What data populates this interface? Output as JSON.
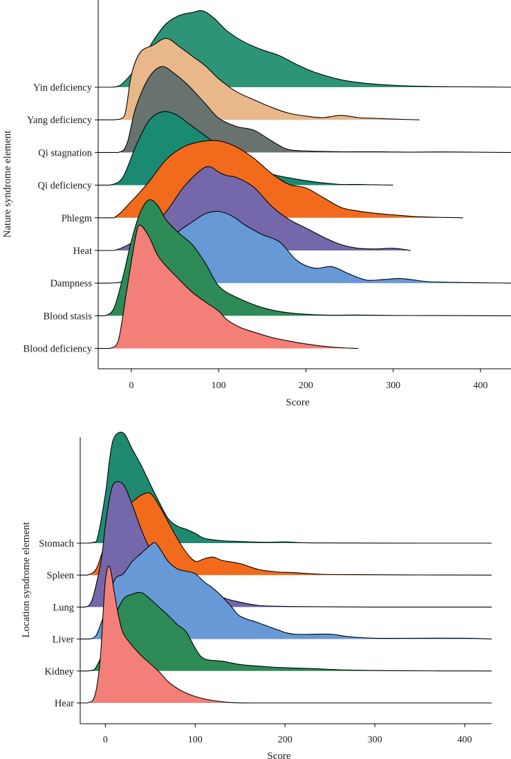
{
  "chart_data": [
    {
      "type": "ridgeline",
      "xlabel": "Score",
      "ylabel": "Nature syndrome element",
      "xlim": [
        -38,
        435
      ],
      "x_ticks": [
        0,
        100,
        200,
        300,
        400
      ],
      "categories_top_to_bottom": [
        "Yin deficiency",
        "Yang deficiency",
        "Qi stagnation",
        "Qi deficiency",
        "Phlegm",
        "Heat",
        "Dampness",
        "Blood stasis",
        "Blood deficiency"
      ],
      "series": [
        {
          "name": "Yin deficiency",
          "color": "#2E9478",
          "x": [
            -38,
            -22,
            -12,
            10,
            25,
            40,
            55,
            70,
            82,
            95,
            110,
            130,
            150,
            170,
            190,
            210,
            240,
            270,
            300,
            340,
            380,
            435
          ],
          "density": [
            0.0,
            0.0,
            0.03,
            0.32,
            0.62,
            0.85,
            0.96,
            1.0,
            1.02,
            0.92,
            0.75,
            0.6,
            0.5,
            0.42,
            0.3,
            0.2,
            0.1,
            0.05,
            0.025,
            0.01,
            0.005,
            0.0
          ]
        },
        {
          "name": "Yang deficiency",
          "color": "#E8B88A",
          "x": [
            -38,
            -20,
            -8,
            0,
            10,
            25,
            40,
            55,
            70,
            85,
            100,
            120,
            140,
            160,
            180,
            200,
            220,
            240,
            260,
            280,
            300,
            330
          ],
          "density": [
            0.0,
            0.0,
            0.05,
            0.6,
            0.9,
            1.0,
            1.09,
            0.98,
            0.85,
            0.72,
            0.55,
            0.38,
            0.27,
            0.17,
            0.09,
            0.05,
            0.03,
            0.06,
            0.03,
            0.02,
            0.01,
            0.0
          ]
        },
        {
          "name": "Qi stagnation",
          "color": "#687370",
          "x": [
            -38,
            -15,
            -5,
            5,
            20,
            35,
            50,
            65,
            85,
            100,
            120,
            140,
            160,
            175,
            185,
            200,
            240,
            280,
            320,
            360,
            400,
            435
          ],
          "density": [
            0.0,
            0.0,
            0.12,
            0.6,
            1.0,
            1.15,
            1.05,
            0.9,
            0.65,
            0.46,
            0.35,
            0.3,
            0.16,
            0.06,
            0.03,
            0.02,
            0.01,
            0.01,
            0.005,
            0.008,
            0.003,
            0.0
          ]
        },
        {
          "name": "Qi deficiency",
          "color": "#1B8A73",
          "x": [
            -38,
            -25,
            -10,
            5,
            20,
            35,
            50,
            65,
            80,
            100,
            120,
            140,
            160,
            180,
            200,
            220,
            240,
            260,
            280,
            300
          ],
          "density": [
            0.0,
            0.0,
            0.1,
            0.52,
            0.86,
            0.98,
            0.95,
            0.83,
            0.7,
            0.53,
            0.38,
            0.25,
            0.15,
            0.1,
            0.06,
            0.03,
            0.01,
            0.01,
            0.005,
            0.0
          ]
        },
        {
          "name": "Phlegm",
          "color": "#F26B1D",
          "x": [
            -38,
            -20,
            0,
            20,
            40,
            60,
            80,
            100,
            120,
            140,
            160,
            180,
            200,
            220,
            240,
            260,
            280,
            300,
            320,
            340,
            360,
            380
          ],
          "density": [
            0.0,
            0.0,
            0.22,
            0.48,
            0.78,
            0.95,
            1.02,
            1.03,
            0.95,
            0.8,
            0.6,
            0.45,
            0.4,
            0.27,
            0.14,
            0.09,
            0.06,
            0.04,
            0.02,
            0.01,
            0.005,
            0.0
          ]
        },
        {
          "name": "Heat",
          "color": "#7568AA",
          "x": [
            -38,
            -20,
            0,
            20,
            40,
            60,
            80,
            90,
            100,
            110,
            120,
            140,
            160,
            180,
            200,
            220,
            240,
            260,
            280,
            300,
            320
          ],
          "density": [
            0.0,
            0.0,
            0.1,
            0.28,
            0.52,
            0.85,
            1.08,
            1.12,
            1.05,
            1.0,
            0.98,
            0.85,
            0.6,
            0.42,
            0.3,
            0.18,
            0.08,
            0.03,
            0.02,
            0.03,
            0.0
          ]
        },
        {
          "name": "Dampness",
          "color": "#6699D6",
          "x": [
            -38,
            -25,
            -10,
            10,
            30,
            50,
            70,
            85,
            100,
            115,
            130,
            150,
            170,
            190,
            210,
            230,
            250,
            270,
            290,
            310,
            340,
            370,
            400,
            435
          ],
          "density": [
            0.0,
            0.0,
            0.02,
            0.15,
            0.35,
            0.65,
            0.82,
            0.93,
            0.96,
            0.9,
            0.78,
            0.65,
            0.55,
            0.3,
            0.2,
            0.22,
            0.12,
            0.04,
            0.05,
            0.06,
            0.02,
            0.01,
            0.005,
            0.0
          ]
        },
        {
          "name": "Blood stasis",
          "color": "#2E8B57",
          "x": [
            -38,
            -30,
            -20,
            -10,
            0,
            10,
            20,
            30,
            40,
            55,
            70,
            85,
            100,
            120,
            150,
            180,
            220,
            260,
            300,
            340,
            380,
            435
          ],
          "density": [
            0.0,
            0.0,
            0.1,
            0.5,
            1.0,
            1.38,
            1.55,
            1.48,
            1.28,
            1.1,
            0.95,
            0.7,
            0.4,
            0.25,
            0.11,
            0.04,
            0.01,
            0.01,
            0.005,
            0.003,
            0.002,
            0.0
          ]
        },
        {
          "name": "Blood deficiency",
          "color": "#F28078",
          "x": [
            -38,
            -25,
            -15,
            -5,
            5,
            10,
            20,
            30,
            40,
            55,
            70,
            85,
            100,
            110,
            125,
            140,
            160,
            180,
            200,
            220,
            240,
            260
          ],
          "density": [
            0.0,
            0.0,
            0.1,
            0.8,
            1.5,
            1.65,
            1.5,
            1.25,
            1.1,
            0.92,
            0.75,
            0.62,
            0.5,
            0.38,
            0.28,
            0.22,
            0.15,
            0.1,
            0.06,
            0.03,
            0.01,
            0.0
          ]
        }
      ]
    },
    {
      "type": "ridgeline",
      "xlabel": "Score",
      "ylabel": "Location syndrome element",
      "xlim": [
        -28,
        430
      ],
      "x_ticks": [
        0,
        100,
        200,
        300,
        400
      ],
      "categories_top_to_bottom": [
        "Stomach",
        "Spleen",
        "Lung",
        "Liver",
        "Kidney",
        "Hear"
      ],
      "series": [
        {
          "name": "Stomach",
          "color": "#1F8A70",
          "x": [
            -28,
            -20,
            -10,
            0,
            5,
            10,
            20,
            30,
            40,
            50,
            60,
            70,
            80,
            90,
            100,
            110,
            130,
            150,
            180,
            200,
            220,
            260,
            300,
            350,
            430
          ],
          "density": [
            0.0,
            0.0,
            0.02,
            0.6,
            1.05,
            1.3,
            1.35,
            1.15,
            0.95,
            0.72,
            0.5,
            0.3,
            0.21,
            0.17,
            0.12,
            0.06,
            0.03,
            0.02,
            0.01,
            0.015,
            0.005,
            0.002,
            0.001,
            0.0,
            0.0
          ]
        },
        {
          "name": "Spleen",
          "color": "#F26B1D",
          "x": [
            -28,
            -20,
            -10,
            0,
            10,
            20,
            30,
            40,
            50,
            60,
            70,
            80,
            90,
            100,
            110,
            120,
            130,
            150,
            170,
            190,
            210,
            240,
            280,
            350,
            430
          ],
          "density": [
            0.0,
            0.0,
            0.08,
            0.4,
            0.7,
            0.85,
            0.9,
            0.98,
            1.0,
            0.85,
            0.65,
            0.45,
            0.28,
            0.17,
            0.2,
            0.22,
            0.18,
            0.14,
            0.07,
            0.04,
            0.03,
            0.01,
            0.005,
            0.002,
            0.0
          ]
        },
        {
          "name": "Lung",
          "color": "#7568AA",
          "x": [
            -28,
            -22,
            -15,
            -5,
            0,
            5,
            10,
            20,
            30,
            40,
            50,
            60,
            70,
            80,
            90,
            100,
            110,
            130,
            150,
            170,
            190,
            220,
            300,
            430
          ],
          "density": [
            0.0,
            0.0,
            0.08,
            0.55,
            1.0,
            1.35,
            1.52,
            1.5,
            1.25,
            0.95,
            0.7,
            0.5,
            0.37,
            0.3,
            0.22,
            0.28,
            0.24,
            0.12,
            0.06,
            0.02,
            0.01,
            0.005,
            0.0,
            0.0
          ]
        },
        {
          "name": "Liver",
          "color": "#6699D6",
          "x": [
            -28,
            -18,
            -10,
            0,
            10,
            20,
            30,
            40,
            50,
            55,
            60,
            70,
            80,
            90,
            100,
            110,
            120,
            130,
            140,
            150,
            170,
            190,
            210,
            250,
            270,
            300,
            350,
            400,
            430
          ],
          "density": [
            0.0,
            0.0,
            0.05,
            0.35,
            0.72,
            0.8,
            0.95,
            1.05,
            1.15,
            1.18,
            1.12,
            0.95,
            0.86,
            0.83,
            0.8,
            0.7,
            0.62,
            0.52,
            0.4,
            0.28,
            0.2,
            0.12,
            0.06,
            0.06,
            0.03,
            0.01,
            0.01,
            0.01,
            0.0
          ]
        },
        {
          "name": "Kidney",
          "color": "#2E8B57",
          "x": [
            -28,
            -20,
            -12,
            0,
            10,
            20,
            30,
            40,
            50,
            60,
            70,
            80,
            90,
            100,
            110,
            130,
            150,
            170,
            200,
            230,
            260,
            290,
            330,
            380,
            430
          ],
          "density": [
            0.0,
            0.0,
            0.02,
            0.3,
            0.65,
            0.88,
            0.94,
            0.96,
            0.88,
            0.78,
            0.68,
            0.57,
            0.48,
            0.28,
            0.15,
            0.12,
            0.08,
            0.06,
            0.04,
            0.03,
            0.015,
            0.008,
            0.003,
            0.001,
            0.0
          ]
        },
        {
          "name": "Hear",
          "color": "#F28078",
          "x": [
            -28,
            -20,
            -12,
            -6,
            -2,
            0,
            3,
            6,
            10,
            15,
            20,
            30,
            40,
            50,
            60,
            70,
            80,
            90,
            100,
            110,
            120,
            130,
            140,
            160,
            200,
            300,
            430
          ],
          "density": [
            0.0,
            0.0,
            0.08,
            0.5,
            1.2,
            1.5,
            1.67,
            1.62,
            1.35,
            1.05,
            0.85,
            0.7,
            0.58,
            0.48,
            0.38,
            0.26,
            0.18,
            0.12,
            0.08,
            0.05,
            0.03,
            0.015,
            0.005,
            0.0,
            0.0,
            0.0,
            0.0
          ]
        }
      ]
    }
  ]
}
